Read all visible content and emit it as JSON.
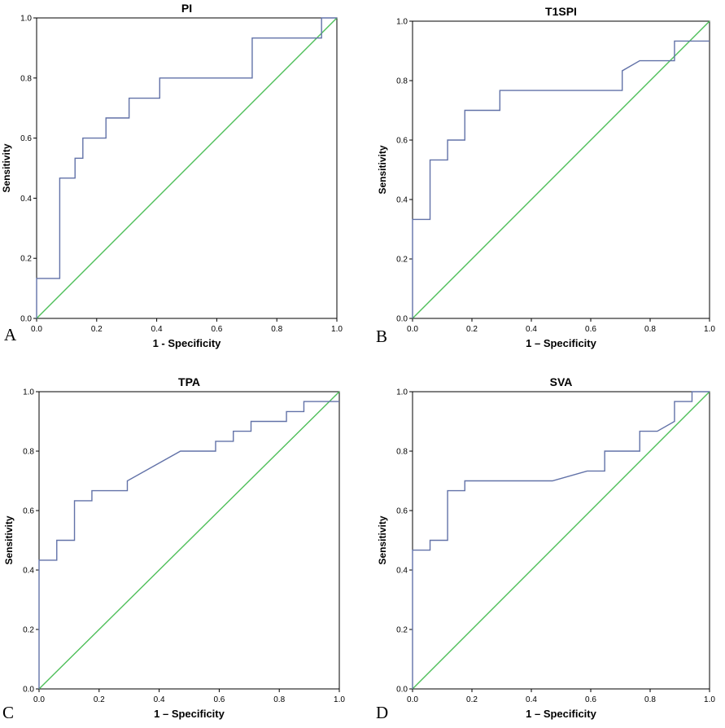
{
  "chart_data": [
    {
      "type": "line",
      "panel_label": "A",
      "title": "PI",
      "xlabel": "1 - Specificity",
      "ylabel": "Sensitivity",
      "xlim": [
        0,
        1
      ],
      "ylim": [
        0,
        1
      ],
      "x_ticks": [
        "0.0",
        "0.2",
        "0.4",
        "0.6",
        "0.8",
        "1.0"
      ],
      "y_ticks": [
        "0.0",
        "0.2",
        "0.4",
        "0.6",
        "0.8",
        "1.0"
      ],
      "series": [
        {
          "name": "ROC curve",
          "color": "#6272a8",
          "points": [
            [
              0,
              0
            ],
            [
              0,
              0.133
            ],
            [
              0.077,
              0.133
            ],
            [
              0.077,
              0.467
            ],
            [
              0.128,
              0.467
            ],
            [
              0.128,
              0.533
            ],
            [
              0.154,
              0.533
            ],
            [
              0.154,
              0.6
            ],
            [
              0.231,
              0.6
            ],
            [
              0.231,
              0.667
            ],
            [
              0.308,
              0.667
            ],
            [
              0.308,
              0.733
            ],
            [
              0.41,
              0.733
            ],
            [
              0.41,
              0.8
            ],
            [
              0.718,
              0.8
            ],
            [
              0.718,
              0.933
            ],
            [
              0.949,
              0.933
            ],
            [
              0.949,
              1.0
            ],
            [
              1.0,
              1.0
            ]
          ]
        },
        {
          "name": "Reference line",
          "color": "#4fbf5a",
          "points": [
            [
              0,
              0
            ],
            [
              1,
              1
            ]
          ]
        }
      ]
    },
    {
      "type": "line",
      "panel_label": "B",
      "title": "T1SPI",
      "xlabel": "1 – Specificity",
      "ylabel": "Sensitivity",
      "xlim": [
        0,
        1
      ],
      "ylim": [
        0,
        1
      ],
      "x_ticks": [
        "0.0",
        "0.2",
        "0.4",
        "0.6",
        "0.8",
        "1.0"
      ],
      "y_ticks": [
        "0.0",
        "0.2",
        "0.4",
        "0.6",
        "0.8",
        "1.0"
      ],
      "series": [
        {
          "name": "ROC curve",
          "color": "#6272a8",
          "points": [
            [
              0,
              0
            ],
            [
              0,
              0.333
            ],
            [
              0.059,
              0.333
            ],
            [
              0.059,
              0.533
            ],
            [
              0.118,
              0.533
            ],
            [
              0.118,
              0.6
            ],
            [
              0.176,
              0.6
            ],
            [
              0.176,
              0.7
            ],
            [
              0.294,
              0.7
            ],
            [
              0.294,
              0.767
            ],
            [
              0.706,
              0.767
            ],
            [
              0.706,
              0.833
            ],
            [
              0.765,
              0.867
            ],
            [
              0.882,
              0.867
            ],
            [
              0.882,
              0.933
            ],
            [
              1.0,
              0.933
            ]
          ]
        },
        {
          "name": "Reference line",
          "color": "#4fbf5a",
          "points": [
            [
              0,
              0
            ],
            [
              1,
              1
            ]
          ]
        }
      ]
    },
    {
      "type": "line",
      "panel_label": "C",
      "title": "TPA",
      "xlabel": "1 – Specificity",
      "ylabel": "Sensitivity",
      "xlim": [
        0,
        1
      ],
      "ylim": [
        0,
        1
      ],
      "x_ticks": [
        "0.0",
        "0.2",
        "0.4",
        "0.6",
        "0.8",
        "1.0"
      ],
      "y_ticks": [
        "0.0",
        "0.2",
        "0.4",
        "0.6",
        "0.8",
        "1.0"
      ],
      "series": [
        {
          "name": "ROC curve",
          "color": "#6272a8",
          "points": [
            [
              0,
              0
            ],
            [
              0,
              0.433
            ],
            [
              0.059,
              0.433
            ],
            [
              0.059,
              0.5
            ],
            [
              0.118,
              0.5
            ],
            [
              0.118,
              0.633
            ],
            [
              0.176,
              0.633
            ],
            [
              0.176,
              0.667
            ],
            [
              0.294,
              0.667
            ],
            [
              0.294,
              0.7
            ],
            [
              0.471,
              0.8
            ],
            [
              0.588,
              0.8
            ],
            [
              0.588,
              0.833
            ],
            [
              0.647,
              0.833
            ],
            [
              0.647,
              0.867
            ],
            [
              0.706,
              0.867
            ],
            [
              0.706,
              0.9
            ],
            [
              0.824,
              0.9
            ],
            [
              0.824,
              0.933
            ],
            [
              0.882,
              0.933
            ],
            [
              0.882,
              0.967
            ],
            [
              1.0,
              0.967
            ]
          ]
        },
        {
          "name": "Reference line",
          "color": "#4fbf5a",
          "points": [
            [
              0,
              0
            ],
            [
              1,
              1
            ]
          ]
        }
      ]
    },
    {
      "type": "line",
      "panel_label": "D",
      "title": "SVA",
      "xlabel": "1 – Specificity",
      "ylabel": "Sensitivity",
      "xlim": [
        0,
        1
      ],
      "ylim": [
        0,
        1
      ],
      "x_ticks": [
        "0.0",
        "0.2",
        "0.4",
        "0.6",
        "0.8",
        "1.0"
      ],
      "y_ticks": [
        "0.0",
        "0.2",
        "0.4",
        "0.6",
        "0.8",
        "1.0"
      ],
      "series": [
        {
          "name": "ROC curve",
          "color": "#6272a8",
          "points": [
            [
              0,
              0
            ],
            [
              0,
              0.467
            ],
            [
              0.059,
              0.467
            ],
            [
              0.059,
              0.5
            ],
            [
              0.118,
              0.5
            ],
            [
              0.118,
              0.667
            ],
            [
              0.176,
              0.667
            ],
            [
              0.176,
              0.7
            ],
            [
              0.471,
              0.7
            ],
            [
              0.588,
              0.733
            ],
            [
              0.647,
              0.733
            ],
            [
              0.647,
              0.8
            ],
            [
              0.765,
              0.8
            ],
            [
              0.765,
              0.867
            ],
            [
              0.824,
              0.867
            ],
            [
              0.882,
              0.9
            ],
            [
              0.882,
              0.967
            ],
            [
              0.941,
              0.967
            ],
            [
              0.941,
              1.0
            ],
            [
              1.0,
              1.0
            ]
          ]
        },
        {
          "name": "Reference line",
          "color": "#4fbf5a",
          "points": [
            [
              0,
              0
            ],
            [
              1,
              1
            ]
          ]
        }
      ]
    }
  ]
}
